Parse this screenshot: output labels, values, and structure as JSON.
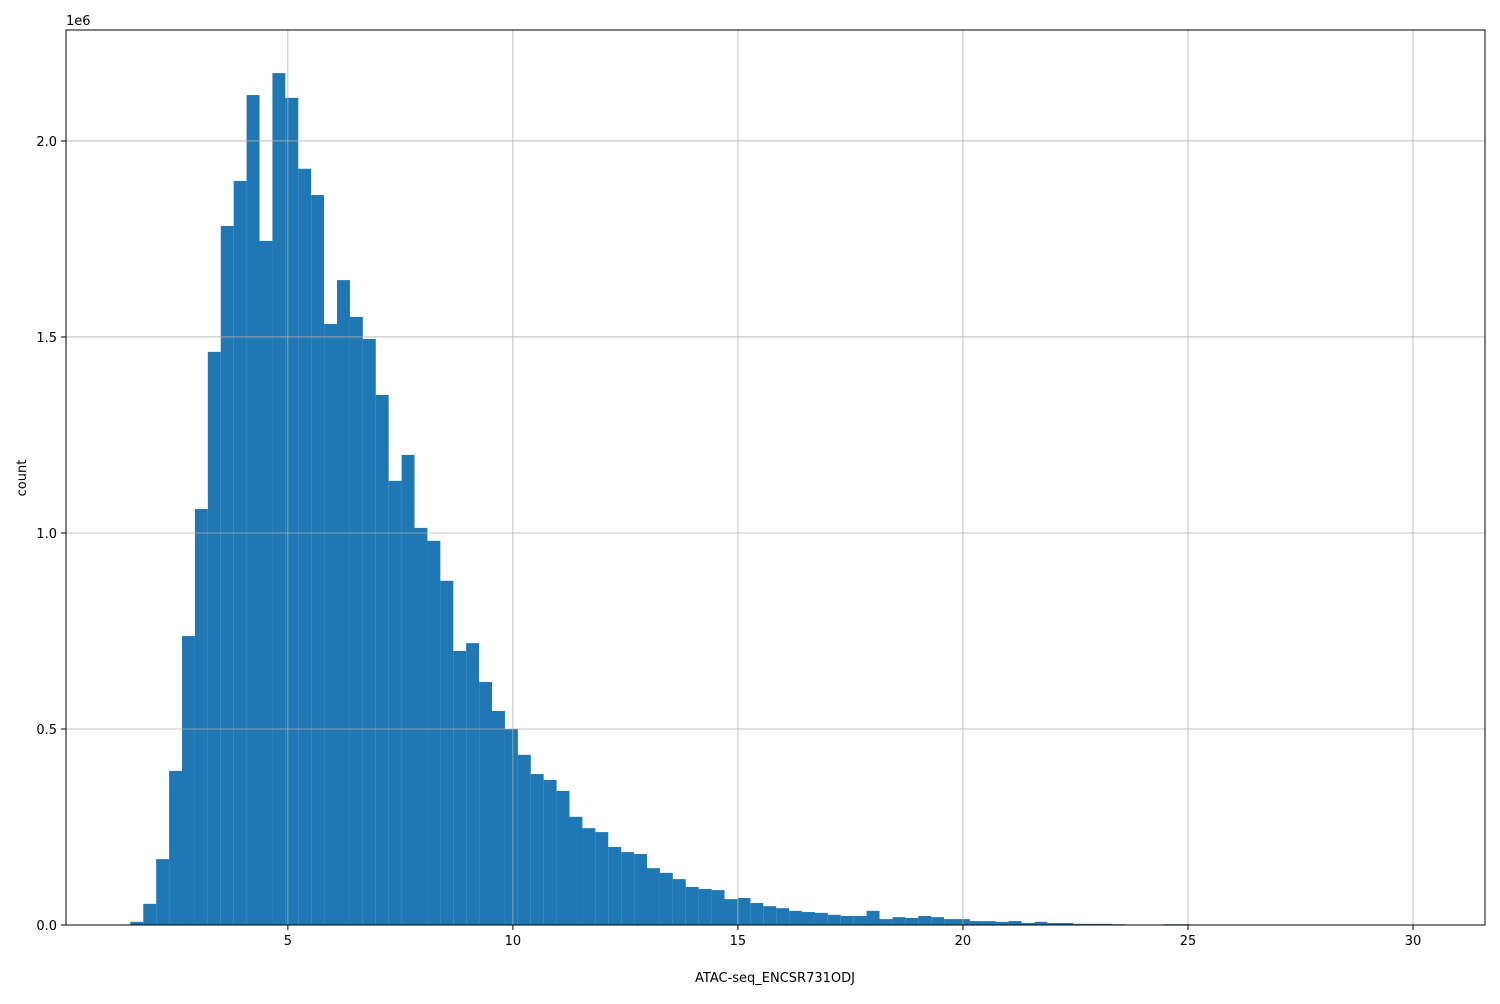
{
  "chart_data": {
    "type": "histogram",
    "xlabel": "ATAC-seq_ENCSR731ODJ",
    "ylabel": "count",
    "y_offset_label": "1e6",
    "color": "#1f77b4",
    "grid": true,
    "xlim": [
      0.07,
      31.6
    ],
    "ylim": [
      0,
      2283000
    ],
    "xticks": [
      5,
      10,
      15,
      20,
      25,
      30
    ],
    "yticks": [
      {
        "value": 0,
        "label": "0.0"
      },
      {
        "value": 500000,
        "label": "0.5"
      },
      {
        "value": 1000000,
        "label": "1.0"
      },
      {
        "value": 1500000,
        "label": "1.5"
      },
      {
        "value": 2000000,
        "label": "2.0"
      }
    ],
    "bins": [
      1.5,
      1.787,
      2.074,
      2.361,
      2.648,
      2.935,
      3.222,
      3.509,
      3.796,
      4.083,
      4.37,
      4.657,
      4.944,
      5.231,
      5.518,
      5.805,
      6.092,
      6.379,
      6.666,
      6.953,
      7.24,
      7.527,
      7.814,
      8.101,
      8.388,
      8.675,
      8.962,
      9.249,
      9.536,
      9.823,
      10.11,
      10.397,
      10.684,
      10.971,
      11.258,
      11.545,
      11.832,
      12.119,
      12.406,
      12.693,
      12.98,
      13.267,
      13.554,
      13.841,
      14.128,
      14.415,
      14.702,
      14.989,
      15.276,
      15.563,
      15.85,
      16.137,
      16.424,
      16.711,
      16.998,
      17.285,
      17.572,
      17.859,
      18.146,
      18.433,
      18.72,
      19.007,
      19.294,
      19.581,
      19.868,
      20.155,
      20.442,
      20.729,
      21.016,
      21.303,
      21.59,
      21.877,
      22.164,
      22.451,
      22.738,
      23.025,
      23.312,
      23.599,
      23.886,
      24.173,
      24.46,
      24.747,
      25.034,
      25.321,
      25.608,
      25.895,
      26.182,
      26.469,
      26.756,
      27.043,
      27.33,
      27.617,
      27.904,
      28.191,
      28.478,
      28.765,
      29.052,
      29.339,
      29.626,
      29.913,
      30.2
    ],
    "values": [
      8000,
      54000,
      168000,
      393000,
      737000,
      1061000,
      1462000,
      1783000,
      1898000,
      2117000,
      1745000,
      2173000,
      2110000,
      1929000,
      1862000,
      1533000,
      1645000,
      1551000,
      1495000,
      1352000,
      1133000,
      1199000,
      1013000,
      980000,
      878000,
      699000,
      719000,
      620000,
      546000,
      500000,
      434000,
      385000,
      370000,
      342000,
      276000,
      247000,
      237000,
      199000,
      186000,
      181000,
      145000,
      133000,
      117000,
      97000,
      92000,
      89000,
      66000,
      69000,
      56000,
      48000,
      43000,
      36000,
      33000,
      31000,
      26000,
      23000,
      23000,
      36000,
      15000,
      20000,
      18000,
      23000,
      20000,
      15000,
      15000,
      10000,
      10000,
      8000,
      10000,
      5000,
      8000,
      5000,
      5000,
      3000,
      3000,
      3000,
      2000,
      1000,
      1000,
      1000,
      2000,
      2000,
      500,
      500,
      300,
      300,
      200,
      200,
      100,
      100,
      100,
      100,
      100,
      100,
      100,
      100,
      100,
      100,
      100,
      100
    ]
  }
}
